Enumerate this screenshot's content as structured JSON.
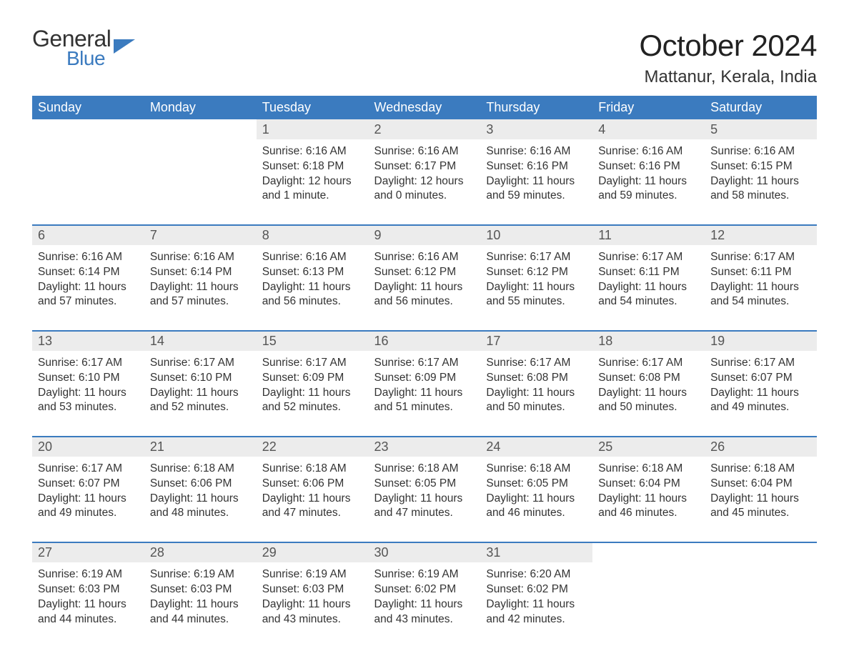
{
  "logo": {
    "text1": "General",
    "text2": "Blue",
    "color1": "#333333",
    "color2": "#3b7bbf",
    "flag_color": "#3b7bbf"
  },
  "title": "October 2024",
  "location": "Mattanur, Kerala, India",
  "style": {
    "header_bg": "#3b7bbf",
    "header_fg": "#ffffff",
    "daynum_bg": "#ececec",
    "daynum_fg": "#555555",
    "row_divider": "#3b7bbf",
    "body_color": "#333333",
    "page_bg": "#ffffff",
    "title_fontsize": 42,
    "location_fontsize": 24,
    "header_fontsize": 18,
    "daynum_fontsize": 18,
    "cell_fontsize": 15.5
  },
  "day_headers": [
    "Sunday",
    "Monday",
    "Tuesday",
    "Wednesday",
    "Thursday",
    "Friday",
    "Saturday"
  ],
  "weeks": [
    [
      null,
      null,
      {
        "n": "1",
        "sr": "6:16 AM",
        "ss": "6:18 PM",
        "dl": "12 hours and 1 minute."
      },
      {
        "n": "2",
        "sr": "6:16 AM",
        "ss": "6:17 PM",
        "dl": "12 hours and 0 minutes."
      },
      {
        "n": "3",
        "sr": "6:16 AM",
        "ss": "6:16 PM",
        "dl": "11 hours and 59 minutes."
      },
      {
        "n": "4",
        "sr": "6:16 AM",
        "ss": "6:16 PM",
        "dl": "11 hours and 59 minutes."
      },
      {
        "n": "5",
        "sr": "6:16 AM",
        "ss": "6:15 PM",
        "dl": "11 hours and 58 minutes."
      }
    ],
    [
      {
        "n": "6",
        "sr": "6:16 AM",
        "ss": "6:14 PM",
        "dl": "11 hours and 57 minutes."
      },
      {
        "n": "7",
        "sr": "6:16 AM",
        "ss": "6:14 PM",
        "dl": "11 hours and 57 minutes."
      },
      {
        "n": "8",
        "sr": "6:16 AM",
        "ss": "6:13 PM",
        "dl": "11 hours and 56 minutes."
      },
      {
        "n": "9",
        "sr": "6:16 AM",
        "ss": "6:12 PM",
        "dl": "11 hours and 56 minutes."
      },
      {
        "n": "10",
        "sr": "6:17 AM",
        "ss": "6:12 PM",
        "dl": "11 hours and 55 minutes."
      },
      {
        "n": "11",
        "sr": "6:17 AM",
        "ss": "6:11 PM",
        "dl": "11 hours and 54 minutes."
      },
      {
        "n": "12",
        "sr": "6:17 AM",
        "ss": "6:11 PM",
        "dl": "11 hours and 54 minutes."
      }
    ],
    [
      {
        "n": "13",
        "sr": "6:17 AM",
        "ss": "6:10 PM",
        "dl": "11 hours and 53 minutes."
      },
      {
        "n": "14",
        "sr": "6:17 AM",
        "ss": "6:10 PM",
        "dl": "11 hours and 52 minutes."
      },
      {
        "n": "15",
        "sr": "6:17 AM",
        "ss": "6:09 PM",
        "dl": "11 hours and 52 minutes."
      },
      {
        "n": "16",
        "sr": "6:17 AM",
        "ss": "6:09 PM",
        "dl": "11 hours and 51 minutes."
      },
      {
        "n": "17",
        "sr": "6:17 AM",
        "ss": "6:08 PM",
        "dl": "11 hours and 50 minutes."
      },
      {
        "n": "18",
        "sr": "6:17 AM",
        "ss": "6:08 PM",
        "dl": "11 hours and 50 minutes."
      },
      {
        "n": "19",
        "sr": "6:17 AM",
        "ss": "6:07 PM",
        "dl": "11 hours and 49 minutes."
      }
    ],
    [
      {
        "n": "20",
        "sr": "6:17 AM",
        "ss": "6:07 PM",
        "dl": "11 hours and 49 minutes."
      },
      {
        "n": "21",
        "sr": "6:18 AM",
        "ss": "6:06 PM",
        "dl": "11 hours and 48 minutes."
      },
      {
        "n": "22",
        "sr": "6:18 AM",
        "ss": "6:06 PM",
        "dl": "11 hours and 47 minutes."
      },
      {
        "n": "23",
        "sr": "6:18 AM",
        "ss": "6:05 PM",
        "dl": "11 hours and 47 minutes."
      },
      {
        "n": "24",
        "sr": "6:18 AM",
        "ss": "6:05 PM",
        "dl": "11 hours and 46 minutes."
      },
      {
        "n": "25",
        "sr": "6:18 AM",
        "ss": "6:04 PM",
        "dl": "11 hours and 46 minutes."
      },
      {
        "n": "26",
        "sr": "6:18 AM",
        "ss": "6:04 PM",
        "dl": "11 hours and 45 minutes."
      }
    ],
    [
      {
        "n": "27",
        "sr": "6:19 AM",
        "ss": "6:03 PM",
        "dl": "11 hours and 44 minutes."
      },
      {
        "n": "28",
        "sr": "6:19 AM",
        "ss": "6:03 PM",
        "dl": "11 hours and 44 minutes."
      },
      {
        "n": "29",
        "sr": "6:19 AM",
        "ss": "6:03 PM",
        "dl": "11 hours and 43 minutes."
      },
      {
        "n": "30",
        "sr": "6:19 AM",
        "ss": "6:02 PM",
        "dl": "11 hours and 43 minutes."
      },
      {
        "n": "31",
        "sr": "6:20 AM",
        "ss": "6:02 PM",
        "dl": "11 hours and 42 minutes."
      },
      null,
      null
    ]
  ],
  "labels": {
    "sunrise": "Sunrise: ",
    "sunset": "Sunset: ",
    "daylight": "Daylight: "
  }
}
